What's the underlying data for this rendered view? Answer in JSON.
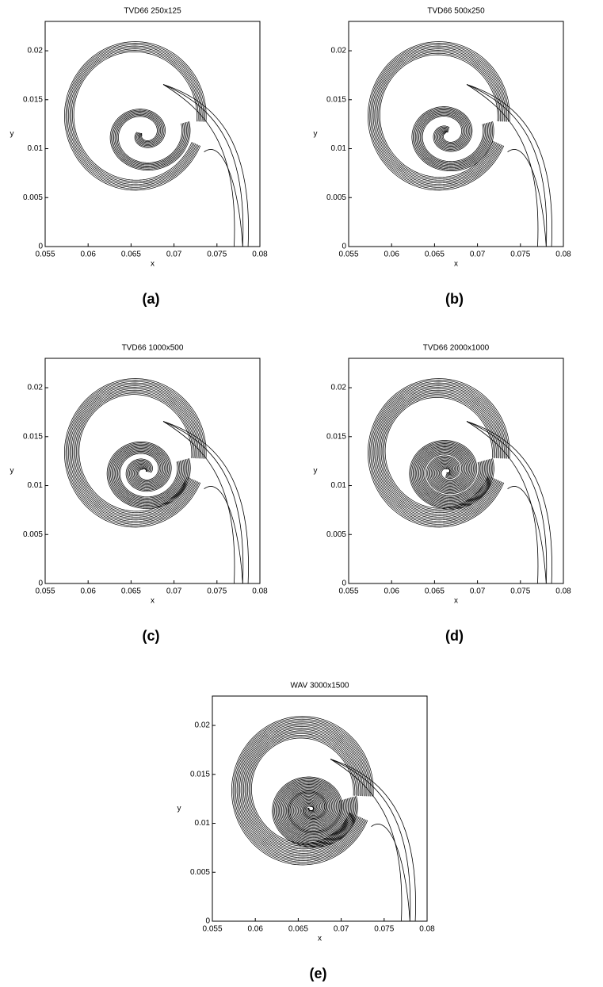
{
  "chart_data": [
    {
      "type": "contour",
      "title": "TVD66 250x125",
      "caption": "(a)",
      "xlabel": "x",
      "ylabel": "y",
      "xlim": [
        0.055,
        0.08
      ],
      "ylim": [
        0,
        0.023
      ],
      "xticks": [
        0.055,
        0.06,
        0.065,
        0.07,
        0.075,
        0.08
      ],
      "yticks": [
        0,
        0.005,
        0.01,
        0.015,
        0.02
      ],
      "color": "#000000"
    },
    {
      "type": "contour",
      "title": "TVD66 500x250",
      "caption": "(b)",
      "xlabel": "x",
      "ylabel": "y",
      "xlim": [
        0.055,
        0.08
      ],
      "ylim": [
        0,
        0.023
      ],
      "xticks": [
        0.055,
        0.06,
        0.065,
        0.07,
        0.075,
        0.08
      ],
      "yticks": [
        0,
        0.005,
        0.01,
        0.015,
        0.02
      ],
      "color": "#000000"
    },
    {
      "type": "contour",
      "title": "TVD66 1000x500",
      "caption": "(c)",
      "xlabel": "x",
      "ylabel": "y",
      "xlim": [
        0.055,
        0.08
      ],
      "ylim": [
        0,
        0.023
      ],
      "xticks": [
        0.055,
        0.06,
        0.065,
        0.07,
        0.075,
        0.08
      ],
      "yticks": [
        0,
        0.005,
        0.01,
        0.015,
        0.02
      ],
      "color": "#000000"
    },
    {
      "type": "contour",
      "title": "TVD66 2000x1000",
      "caption": "(d)",
      "xlabel": "x",
      "ylabel": "y",
      "xlim": [
        0.055,
        0.08
      ],
      "ylim": [
        0,
        0.023
      ],
      "xticks": [
        0.055,
        0.06,
        0.065,
        0.07,
        0.075,
        0.08
      ],
      "yticks": [
        0,
        0.005,
        0.01,
        0.015,
        0.02
      ],
      "color": "#000000"
    },
    {
      "type": "contour",
      "title": "WAV 3000x1500",
      "caption": "(e)",
      "xlabel": "x",
      "ylabel": "y",
      "xlim": [
        0.055,
        0.08
      ],
      "ylim": [
        0,
        0.023
      ],
      "xticks": [
        0.055,
        0.06,
        0.065,
        0.07,
        0.075,
        0.08
      ],
      "yticks": [
        0,
        0.005,
        0.01,
        0.015,
        0.02
      ],
      "color": "#000000"
    }
  ]
}
